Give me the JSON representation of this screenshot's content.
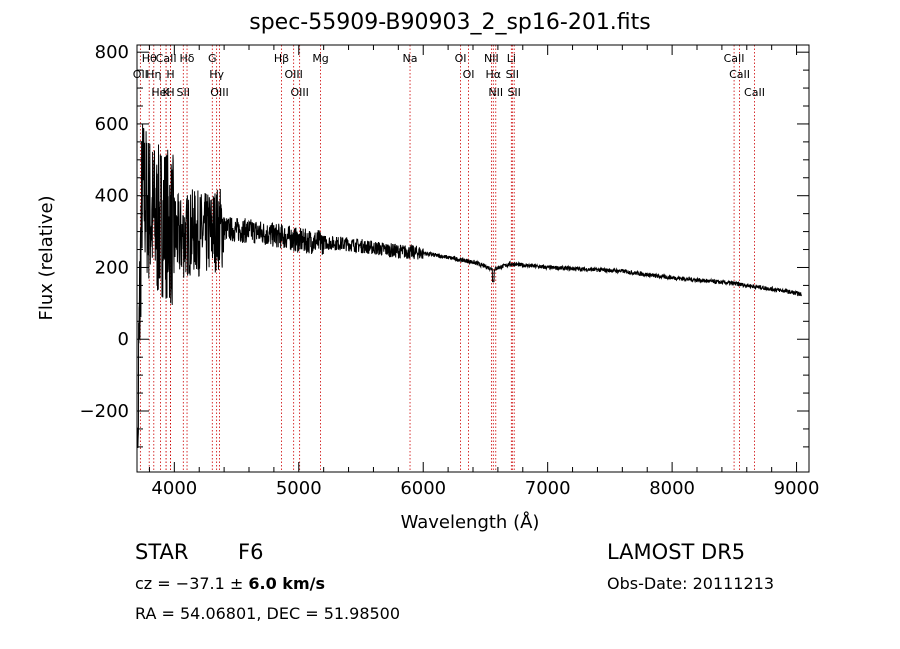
{
  "chart_data": {
    "type": "line",
    "title": "spec-55909-B90903_2_sp16-201.fits",
    "xlabel": "Wavelength (Å)",
    "ylabel": "Flux (relative)",
    "xlim": [
      3700,
      9100
    ],
    "ylim": [
      -370,
      820
    ],
    "xticks": [
      4000,
      5000,
      6000,
      7000,
      8000,
      9000
    ],
    "xtick_labels": [
      "4000",
      "5000",
      "6000",
      "7000",
      "8000",
      "9000"
    ],
    "yticks": [
      -200,
      0,
      200,
      400,
      600,
      800
    ],
    "ytick_labels": [
      "−200",
      "0",
      "200",
      "400",
      "600",
      "800"
    ],
    "grid": false,
    "series": [
      {
        "color": "#000000",
        "x": [
          3700,
          3740,
          3800,
          3860,
          3920,
          3980,
          4050,
          4150,
          4250,
          4350,
          4500,
          4650,
          4800,
          4900,
          5000,
          5200,
          5400,
          5600,
          5800,
          6000,
          6200,
          6400,
          6563,
          6700,
          7000,
          7300,
          7600,
          7900,
          8200,
          8500,
          8700,
          8900,
          9040
        ],
        "y": [
          -300,
          420,
          360,
          320,
          340,
          300,
          280,
          300,
          290,
          310,
          305,
          300,
          290,
          285,
          275,
          270,
          265,
          255,
          245,
          240,
          228,
          215,
          195,
          210,
          200,
          195,
          190,
          175,
          165,
          155,
          145,
          135,
          125
        ]
      }
    ],
    "lines": [
      {
        "name": "CaII",
        "x": 3934
      },
      {
        "name": "Hθ",
        "x": 3798
      },
      {
        "name": "OII",
        "x": 3727
      },
      {
        "name": "Ca H",
        "x": 3969
      },
      {
        "name": "Hη",
        "x": 3835
      },
      {
        "name": "HeI",
        "x": 3889
      },
      {
        "name": "K",
        "x": 3934
      },
      {
        "name": "H",
        "x": 3969
      },
      {
        "name": "SII",
        "x": 4072
      },
      {
        "name": "Hδ",
        "x": 4102
      },
      {
        "name": "G",
        "x": 4305
      },
      {
        "name": "Hγ",
        "x": 4340
      },
      {
        "name": "OIII",
        "x": 4363
      },
      {
        "name": "Hβ",
        "x": 4861
      },
      {
        "name": "OIII",
        "x": 4959
      },
      {
        "name": "OIII",
        "x": 5007
      },
      {
        "name": "Mg",
        "x": 5175
      },
      {
        "name": "Na",
        "x": 5894
      },
      {
        "name": "OI",
        "x": 6300
      },
      {
        "name": "OI",
        "x": 6364
      },
      {
        "name": "NII",
        "x": 6548
      },
      {
        "name": "Hα",
        "x": 6563
      },
      {
        "name": "NII",
        "x": 6583
      },
      {
        "name": "Li",
        "x": 6708
      },
      {
        "name": "SII",
        "x": 6716
      },
      {
        "name": "SII",
        "x": 6731
      },
      {
        "name": "CaII",
        "x": 8498
      },
      {
        "name": "CaII",
        "x": 8542
      },
      {
        "name": "CaII",
        "x": 8662
      }
    ],
    "line_color": "#cc0000"
  },
  "info": {
    "class": "STAR",
    "subclass": "F6",
    "cz_label": "cz = ",
    "cz_value": "−37.1",
    "cz_pm": " ± ",
    "cz_err": "6.0",
    "cz_unit": " km/s",
    "survey": "LAMOST DR5",
    "obs_date": "Obs-Date: 20111213",
    "radec": "RA =  54.06801, DEC =  51.98500"
  }
}
